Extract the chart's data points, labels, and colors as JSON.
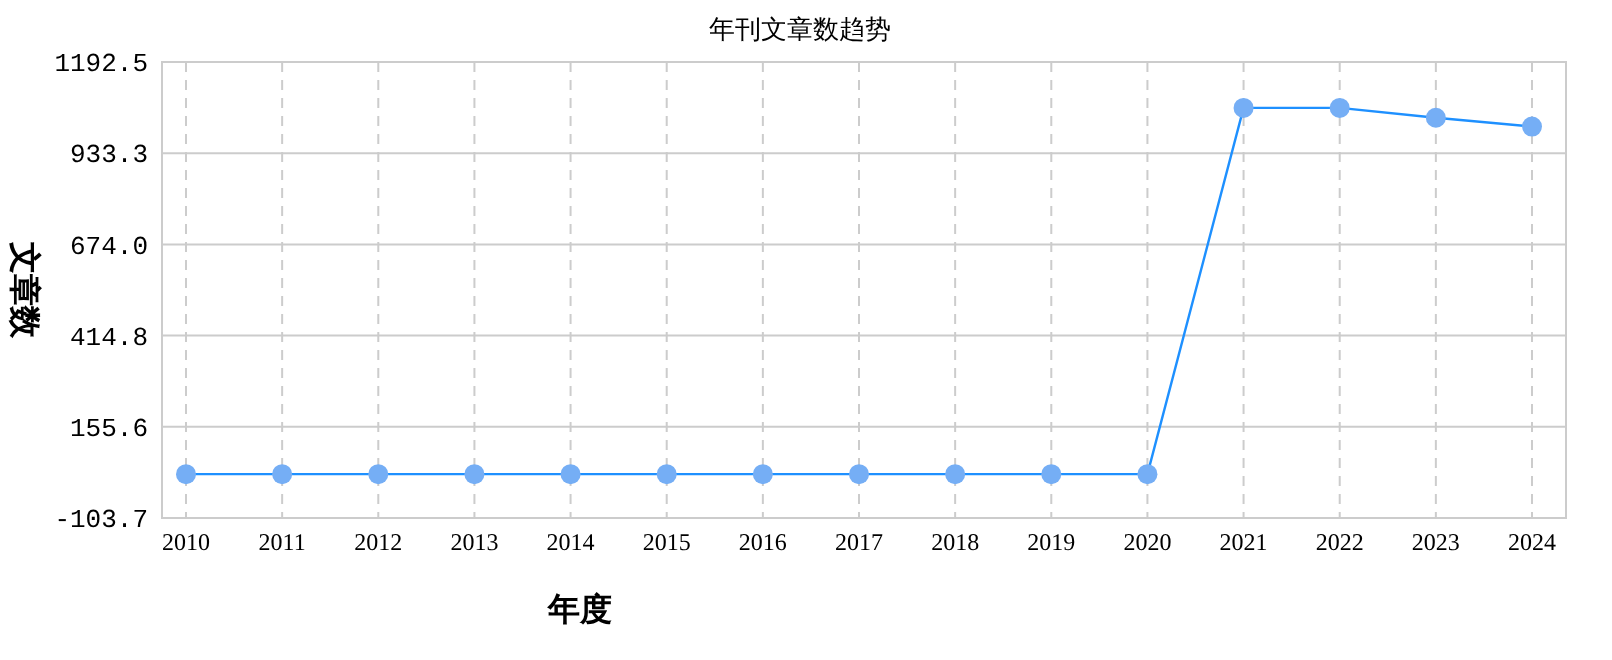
{
  "chart_data": {
    "type": "line",
    "title": "年刊文章数趋势",
    "xlabel": "年度",
    "ylabel": "文章数",
    "categories": [
      "2010",
      "2011",
      "2012",
      "2013",
      "2014",
      "2015",
      "2016",
      "2017",
      "2018",
      "2019",
      "2020",
      "2021",
      "2022",
      "2023",
      "2024"
    ],
    "series": [
      {
        "color": "#1e90ff",
        "values": [
          21,
          21,
          21,
          21,
          21,
          21,
          21,
          21,
          21,
          21,
          21,
          1062,
          1062,
          1034,
          1009
        ]
      }
    ],
    "ylim": [
      -103.7,
      1192.5
    ],
    "yticks": [
      -103.7,
      155.6,
      414.8,
      {
        "value": 674,
        "label": "674.0"
      },
      933.3,
      1192.5
    ],
    "grid": true,
    "marker": "circle"
  }
}
